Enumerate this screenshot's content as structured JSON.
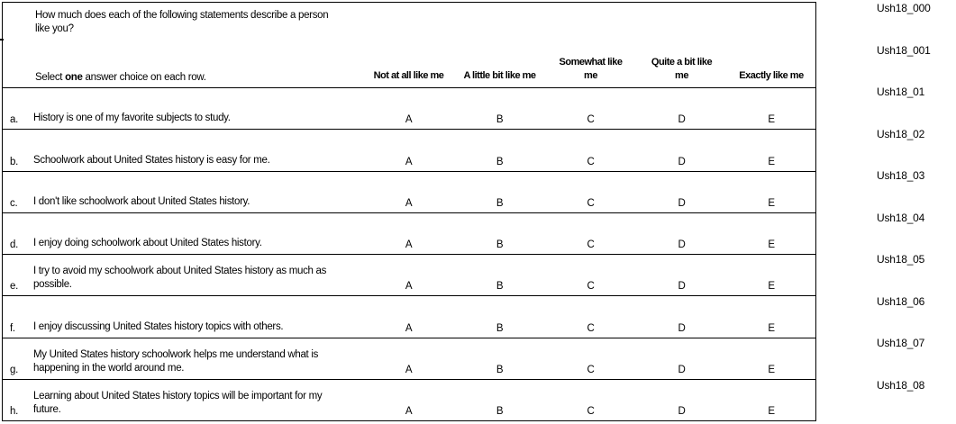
{
  "table": {
    "question": "How much does each of the following statements describe a person\nlike you?",
    "instruction": {
      "prefix": "Select ",
      "bold": "one",
      "suffix": " answer choice on each row."
    },
    "columns": [
      "Not at all like me",
      "A little bit like me",
      "Somewhat like\nme",
      "Quite a bit like\nme",
      "Exactly like me"
    ],
    "rows": [
      {
        "letter": "a.",
        "statement": "History is one of my favorite subjects to study.",
        "choices": [
          "A",
          "B",
          "C",
          "D",
          "E"
        ]
      },
      {
        "letter": "b.",
        "statement": "Schoolwork about United States history is easy for me.",
        "choices": [
          "A",
          "B",
          "C",
          "D",
          "E"
        ]
      },
      {
        "letter": "c.",
        "statement": "I don't like schoolwork about United States history.",
        "choices": [
          "A",
          "B",
          "C",
          "D",
          "E"
        ]
      },
      {
        "letter": "d.",
        "statement": "I enjoy doing schoolwork about United States history.",
        "choices": [
          "A",
          "B",
          "C",
          "D",
          "E"
        ]
      },
      {
        "letter": "e.",
        "statement": "I try to avoid my schoolwork about United States history as much as\npossible.",
        "choices": [
          "A",
          "B",
          "C",
          "D",
          "E"
        ]
      },
      {
        "letter": "f.",
        "statement": "I enjoy discussing United States history topics with others.",
        "choices": [
          "A",
          "B",
          "C",
          "D",
          "E"
        ]
      },
      {
        "letter": "g.",
        "statement": "My United States history schoolwork helps me understand what is\nhappening in the world around me.",
        "choices": [
          "A",
          "B",
          "C",
          "D",
          "E"
        ]
      },
      {
        "letter": "h.",
        "statement": "Learning about United States history topics will be important for my\nfuture.",
        "choices": [
          "A",
          "B",
          "C",
          "D",
          "E"
        ]
      }
    ]
  },
  "side_labels": [
    "Ush18_000",
    "Ush18_001",
    "Ush18_01",
    "Ush18_02",
    "Ush18_03",
    "Ush18_04",
    "Ush18_05",
    "Ush18_06",
    "Ush18_07",
    "Ush18_08"
  ],
  "colors": {
    "background": "#ffffff",
    "border": "#000000",
    "text": "#000000"
  }
}
